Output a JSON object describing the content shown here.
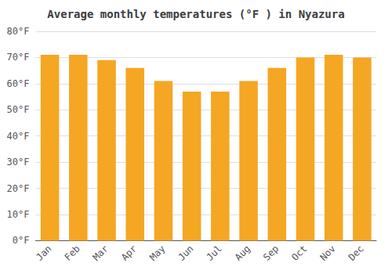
{
  "chart_data": {
    "type": "bar",
    "title": "Average monthly temperatures (°F ) in Nyazura",
    "categories": [
      "Jan",
      "Feb",
      "Mar",
      "Apr",
      "May",
      "Jun",
      "Jul",
      "Aug",
      "Sep",
      "Oct",
      "Nov",
      "Dec"
    ],
    "values": [
      71,
      71,
      69,
      66,
      61,
      57,
      57,
      61,
      66,
      70,
      71,
      70
    ],
    "color": "#F5A623",
    "ylim": [
      0,
      80
    ],
    "yticks": [
      {
        "value": 0,
        "label": "0°F"
      },
      {
        "value": 10,
        "label": "10°F"
      },
      {
        "value": 20,
        "label": "20°F"
      },
      {
        "value": 30,
        "label": "30°F"
      },
      {
        "value": 40,
        "label": "40°F"
      },
      {
        "value": 50,
        "label": "50°F"
      },
      {
        "value": 60,
        "label": "60°F"
      },
      {
        "value": 70,
        "label": "70°F"
      },
      {
        "value": 80,
        "label": "80°F"
      }
    ],
    "grid": true
  }
}
